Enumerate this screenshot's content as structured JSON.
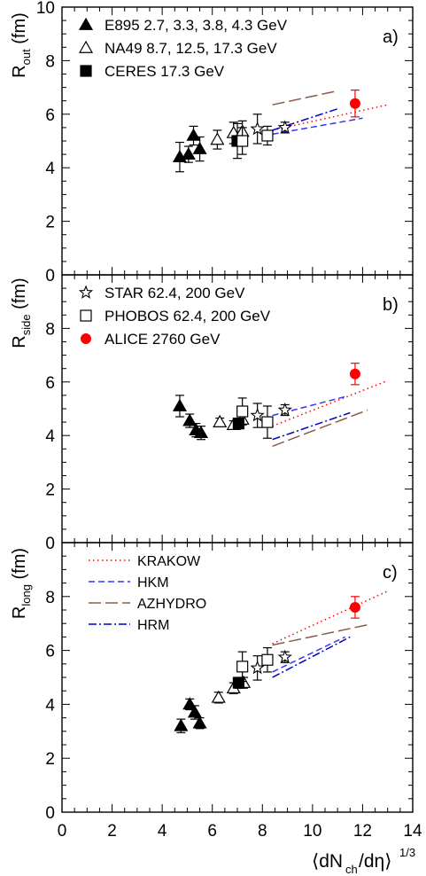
{
  "figure": {
    "xlabel_main": "⟨dN",
    "xlabel_sub": "ch",
    "xlabel_mid": "/dη⟩",
    "xlabel_sup": "1/3",
    "x_ticks": [
      "0",
      "2",
      "4",
      "6",
      "8",
      "10",
      "12",
      "14"
    ],
    "y_ticks": [
      "0",
      "2",
      "4",
      "6",
      "8",
      "10"
    ]
  },
  "colors": {
    "axis": "#000000",
    "alice": "#ff0000",
    "krakow": "#ff0000",
    "hkm": "#3333ff",
    "azhydro": "#8c5a4a",
    "hrm": "#0000c0"
  },
  "legends": {
    "panel_a": [
      {
        "label": "E895 2.7, 3.3, 3.8, 4.3 GeV",
        "marker": "triangle-filled"
      },
      {
        "label": "NA49 8.7, 12.5, 17.3 GeV",
        "marker": "triangle-open"
      },
      {
        "label": "CERES 17.3 GeV",
        "marker": "square-filled"
      }
    ],
    "panel_b": [
      {
        "label": "STAR 62.4, 200 GeV",
        "marker": "star-open"
      },
      {
        "label": "PHOBOS 62.4, 200 GeV",
        "marker": "square-open"
      },
      {
        "label": "ALICE 2760 GeV",
        "marker": "circle-red"
      }
    ],
    "panel_c": [
      {
        "label": "KRAKOW",
        "style": "dotted",
        "color": "#ff0000"
      },
      {
        "label": "HKM",
        "style": "dashed",
        "color": "#3333ff"
      },
      {
        "label": "AZHYDRO",
        "style": "longdash",
        "color": "#8c5a4a"
      },
      {
        "label": "HRM",
        "style": "dashdot",
        "color": "#0000c0"
      }
    ]
  },
  "chart_data": [
    {
      "type": "scatter",
      "panel_tag": "a)",
      "ylabel": "R",
      "ylabel_sub": "out",
      "ylabel_unit": "(fm)",
      "xlim": [
        0,
        14
      ],
      "ylim": [
        0,
        10
      ],
      "series": [
        {
          "name": "E895 2.7, 3.3, 3.8, 4.3 GeV",
          "marker": "triangle-filled",
          "points": [
            {
              "x": 4.7,
              "y": 4.4,
              "err": 0.55
            },
            {
              "x": 5.05,
              "y": 4.5,
              "err": 0.3
            },
            {
              "x": 5.25,
              "y": 5.2,
              "err": 0.35
            },
            {
              "x": 5.5,
              "y": 4.7,
              "err": 0.45
            }
          ]
        },
        {
          "name": "NA49 8.7, 12.5, 17.3 GeV",
          "marker": "triangle-open",
          "points": [
            {
              "x": 6.2,
              "y": 5.05,
              "err": 0.35
            },
            {
              "x": 6.85,
              "y": 5.3,
              "err": 0.4
            },
            {
              "x": 7.2,
              "y": 5.35,
              "err": 0.4
            }
          ]
        },
        {
          "name": "CERES 17.3 GeV",
          "marker": "square-filled",
          "points": [
            {
              "x": 7.0,
              "y": 5.0,
              "err": 0.65
            }
          ]
        },
        {
          "name": "STAR 62.4, 200 GeV",
          "marker": "star-open",
          "points": [
            {
              "x": 7.8,
              "y": 5.45,
              "err": 0.55
            },
            {
              "x": 8.9,
              "y": 5.5,
              "err": 0.2
            }
          ]
        },
        {
          "name": "PHOBOS 62.4, 200 GeV",
          "marker": "square-open",
          "points": [
            {
              "x": 7.2,
              "y": 5.0,
              "err": 0.5
            },
            {
              "x": 8.2,
              "y": 5.2,
              "err": 0.35
            }
          ]
        },
        {
          "name": "ALICE 2760 GeV",
          "marker": "circle-red",
          "points": [
            {
              "x": 11.7,
              "y": 6.4,
              "err": 0.5
            }
          ]
        }
      ],
      "curves": [
        {
          "name": "KRAKOW",
          "points": [
            [
              8.4,
              5.4
            ],
            [
              13.0,
              6.35
            ]
          ]
        },
        {
          "name": "HKM",
          "points": [
            [
              8.4,
              5.25
            ],
            [
              12.0,
              5.85
            ]
          ]
        },
        {
          "name": "AZHYDRO",
          "points": [
            [
              8.4,
              6.35
            ],
            [
              10.9,
              6.85
            ]
          ]
        },
        {
          "name": "HRM",
          "points": [
            [
              8.4,
              5.4
            ],
            [
              11.0,
              6.2
            ]
          ]
        }
      ]
    },
    {
      "type": "scatter",
      "panel_tag": "b)",
      "ylabel": "R",
      "ylabel_sub": "side",
      "ylabel_unit": "(fm)",
      "xlim": [
        0,
        14
      ],
      "ylim": [
        0,
        10
      ],
      "series": [
        {
          "name": "E895 2.7, 3.3, 3.8, 4.3 GeV",
          "marker": "triangle-filled",
          "points": [
            {
              "x": 4.7,
              "y": 5.1,
              "err": 0.4
            },
            {
              "x": 5.1,
              "y": 4.55,
              "err": 0.25
            },
            {
              "x": 5.35,
              "y": 4.2,
              "err": 0.25
            },
            {
              "x": 5.55,
              "y": 4.1,
              "err": 0.25
            }
          ]
        },
        {
          "name": "NA49 8.7, 12.5, 17.3 GeV",
          "marker": "triangle-open",
          "points": [
            {
              "x": 6.3,
              "y": 4.5,
              "err": 0.15
            },
            {
              "x": 6.85,
              "y": 4.4,
              "err": 0.15
            },
            {
              "x": 7.2,
              "y": 4.6,
              "err": 0.2
            }
          ]
        },
        {
          "name": "CERES 17.3 GeV",
          "marker": "square-filled",
          "points": [
            {
              "x": 7.05,
              "y": 4.45,
              "err": 0.2
            }
          ]
        },
        {
          "name": "STAR 62.4, 200 GeV",
          "marker": "star-open",
          "points": [
            {
              "x": 7.8,
              "y": 4.75,
              "err": 0.45
            },
            {
              "x": 8.9,
              "y": 4.95,
              "err": 0.2
            }
          ]
        },
        {
          "name": "PHOBOS 62.4, 200 GeV",
          "marker": "square-open",
          "points": [
            {
              "x": 7.2,
              "y": 4.9,
              "err": 0.5
            },
            {
              "x": 8.2,
              "y": 4.5,
              "err": 0.6
            }
          ]
        },
        {
          "name": "ALICE 2760 GeV",
          "marker": "circle-red",
          "points": [
            {
              "x": 11.7,
              "y": 6.3,
              "err": 0.4
            }
          ]
        }
      ],
      "curves": [
        {
          "name": "KRAKOW",
          "points": [
            [
              8.4,
              4.35
            ],
            [
              13.0,
              6.05
            ]
          ]
        },
        {
          "name": "HKM",
          "points": [
            [
              8.4,
              4.75
            ],
            [
              11.3,
              5.45
            ]
          ]
        },
        {
          "name": "AZHYDRO",
          "points": [
            [
              8.4,
              3.6
            ],
            [
              12.2,
              4.95
            ]
          ]
        },
        {
          "name": "HRM",
          "points": [
            [
              8.4,
              3.85
            ],
            [
              11.5,
              4.85
            ]
          ]
        }
      ]
    },
    {
      "type": "scatter",
      "panel_tag": "c)",
      "ylabel": "R",
      "ylabel_sub": "long",
      "ylabel_unit": "(fm)",
      "xlim": [
        0,
        14
      ],
      "ylim": [
        0,
        10
      ],
      "series": [
        {
          "name": "E895 2.7, 3.3, 3.8, 4.3 GeV",
          "marker": "triangle-filled",
          "points": [
            {
              "x": 4.75,
              "y": 3.2,
              "err": 0.25
            },
            {
              "x": 5.1,
              "y": 4.0,
              "err": 0.2
            },
            {
              "x": 5.3,
              "y": 3.7,
              "err": 0.25
            },
            {
              "x": 5.5,
              "y": 3.3,
              "err": 0.2
            }
          ]
        },
        {
          "name": "NA49 8.7, 12.5, 17.3 GeV",
          "marker": "triangle-open",
          "points": [
            {
              "x": 6.25,
              "y": 4.25,
              "err": 0.2
            },
            {
              "x": 6.85,
              "y": 4.6,
              "err": 0.2
            },
            {
              "x": 7.25,
              "y": 4.8,
              "err": 0.2
            }
          ]
        },
        {
          "name": "CERES 17.3 GeV",
          "marker": "square-filled",
          "points": [
            {
              "x": 7.05,
              "y": 4.8,
              "err": 0.2
            }
          ]
        },
        {
          "name": "STAR 62.4, 200 GeV",
          "marker": "star-open",
          "points": [
            {
              "x": 7.8,
              "y": 5.35,
              "err": 0.45
            },
            {
              "x": 8.9,
              "y": 5.75,
              "err": 0.2
            }
          ]
        },
        {
          "name": "PHOBOS 62.4, 200 GeV",
          "marker": "square-open",
          "points": [
            {
              "x": 7.2,
              "y": 5.4,
              "err": 0.55
            },
            {
              "x": 8.2,
              "y": 5.65,
              "err": 0.45
            }
          ]
        },
        {
          "name": "ALICE 2760 GeV",
          "marker": "circle-red",
          "points": [
            {
              "x": 11.7,
              "y": 7.6,
              "err": 0.4
            }
          ]
        }
      ],
      "curves": [
        {
          "name": "KRAKOW",
          "points": [
            [
              8.4,
              6.25
            ],
            [
              13.0,
              8.2
            ]
          ]
        },
        {
          "name": "HKM",
          "points": [
            [
              8.4,
              5.2
            ],
            [
              11.3,
              6.5
            ]
          ]
        },
        {
          "name": "AZHYDRO",
          "points": [
            [
              8.4,
              6.2
            ],
            [
              12.2,
              6.95
            ]
          ]
        },
        {
          "name": "HRM",
          "points": [
            [
              8.4,
              5.0
            ],
            [
              11.5,
              6.5
            ]
          ]
        }
      ]
    }
  ]
}
